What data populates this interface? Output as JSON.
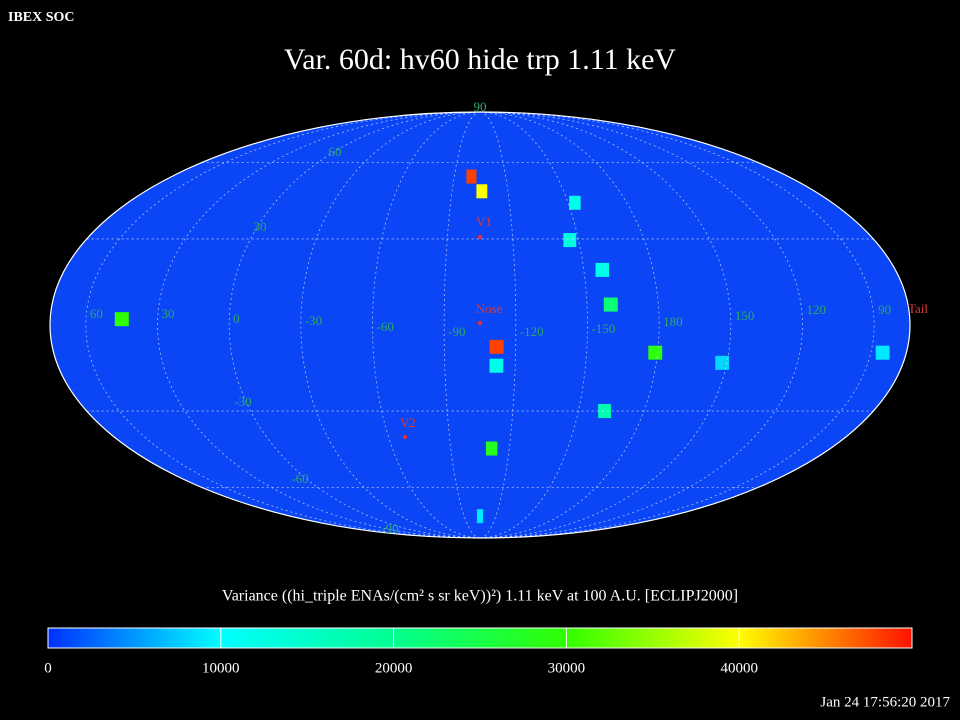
{
  "header": {
    "source": "IBEX SOC",
    "title": "Var. 60d: hv60 hide trp 1.11 keV",
    "timestamp": "Jan 24 17:56:20 2017"
  },
  "map": {
    "longitude_labels": [
      60,
      30,
      0,
      -30,
      -60,
      -90,
      -120,
      -150,
      180,
      150,
      120,
      90
    ],
    "latitude_labels": [
      90,
      60,
      30,
      -30,
      -60,
      -90
    ],
    "markers": [
      {
        "label": "V1"
      },
      {
        "label": "Nose"
      },
      {
        "label": "V2"
      },
      {
        "label": "Tail"
      }
    ],
    "pixels": [
      {
        "lon": -100,
        "lat": 54,
        "value": 48000
      },
      {
        "lon": -106,
        "lat": 48,
        "value": 40000
      },
      {
        "lon": -112,
        "lat": -7.5,
        "value": 48000
      },
      {
        "lon": -112,
        "lat": -14,
        "value": 12000
      },
      {
        "lon": -111,
        "lat": -44,
        "value": 28000
      },
      {
        "lon": -105,
        "lat": -74,
        "value": 9000
      },
      {
        "lon": 45,
        "lat": 2,
        "value": 30000
      },
      {
        "lon": -179,
        "lat": -9.5,
        "value": 29000
      },
      {
        "lon": -160,
        "lat": 7,
        "value": 22000
      },
      {
        "lon": -162,
        "lat": -30,
        "value": 17000
      },
      {
        "lon": -153.5,
        "lat": 43.5,
        "value": 12000
      },
      {
        "lon": -158,
        "lat": 19,
        "value": 12000
      },
      {
        "lon": -146,
        "lat": 29.6,
        "value": 13000
      },
      {
        "lon": 85,
        "lat": -9.5,
        "value": 9000
      },
      {
        "lon": 152,
        "lat": -13,
        "value": 8000
      }
    ]
  },
  "colorbar": {
    "title": "Variance ((hi_triple ENAs/(cm² s sr keV))²) 1.11 keV at 100 A.U. [ECLIPJ2000]",
    "range": [
      0,
      50000
    ],
    "ticks": [
      0,
      10000,
      20000,
      30000,
      40000
    ]
  }
}
